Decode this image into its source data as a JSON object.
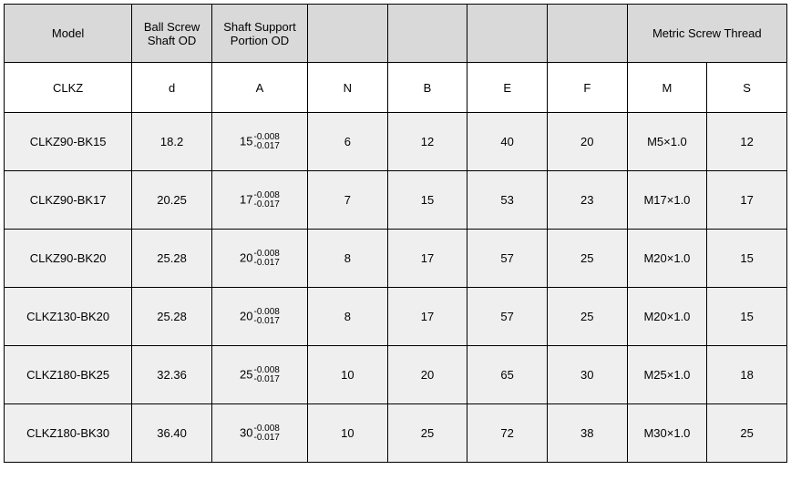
{
  "table": {
    "background_color": "#ffffff",
    "header_bg": "#d9d9d9",
    "data_bg": "#efefef",
    "border_color": "#000000",
    "heading": {
      "model": "Model",
      "d": "Ball Screw Shaft OD",
      "a": "Shaft Support Portion OD",
      "n": "",
      "b": "",
      "e": "",
      "f": "",
      "ms": "Metric Screw Thread"
    },
    "symbols": {
      "model": "CLKZ",
      "d": "d",
      "a": "A",
      "n": "N",
      "b": "B",
      "e": "E",
      "f": "F",
      "m": "M",
      "s": "S"
    },
    "tolerance": {
      "upper": "-0.008",
      "lower": "-0.017"
    },
    "rows": [
      {
        "model": "CLKZ90-BK15",
        "d": "18.2",
        "a_main": "15",
        "n": "6",
        "b": "12",
        "e": "40",
        "f": "20",
        "m": "M5×1.0",
        "s": "12"
      },
      {
        "model": "CLKZ90-BK17",
        "d": "20.25",
        "a_main": "17",
        "n": "7",
        "b": "15",
        "e": "53",
        "f": "23",
        "m": "M17×1.0",
        "s": "17"
      },
      {
        "model": "CLKZ90-BK20",
        "d": "25.28",
        "a_main": "20",
        "n": "8",
        "b": "17",
        "e": "57",
        "f": "25",
        "m": "M20×1.0",
        "s": "15"
      },
      {
        "model": "CLKZ130-BK20",
        "d": "25.28",
        "a_main": "20",
        "n": "8",
        "b": "17",
        "e": "57",
        "f": "25",
        "m": "M20×1.0",
        "s": "15"
      },
      {
        "model": "CLKZ180-BK25",
        "d": "32.36",
        "a_main": "25",
        "n": "10",
        "b": "20",
        "e": "65",
        "f": "30",
        "m": "M25×1.0",
        "s": "18"
      },
      {
        "model": "CLKZ180-BK30",
        "d": "36.40",
        "a_main": "30",
        "n": "10",
        "b": "25",
        "e": "72",
        "f": "38",
        "m": "M30×1.0",
        "s": "25"
      }
    ]
  }
}
